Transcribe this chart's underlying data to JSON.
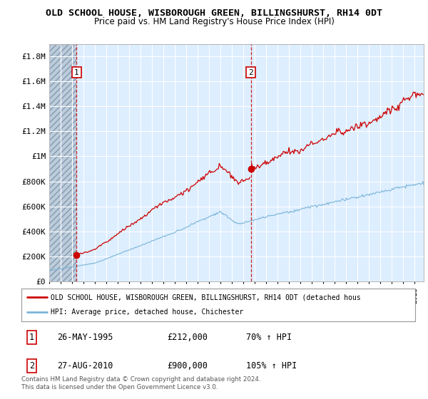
{
  "title": "OLD SCHOOL HOUSE, WISBOROUGH GREEN, BILLINGSHURST, RH14 0DT",
  "subtitle": "Price paid vs. HM Land Registry's House Price Index (HPI)",
  "ylim": [
    0,
    1900000
  ],
  "yticks": [
    0,
    200000,
    400000,
    600000,
    800000,
    1000000,
    1200000,
    1400000,
    1600000,
    1800000
  ],
  "ytick_labels": [
    "£0",
    "£200K",
    "£400K",
    "£600K",
    "£800K",
    "£1M",
    "£1.2M",
    "£1.4M",
    "£1.6M",
    "£1.8M"
  ],
  "xlim_start": 1993.0,
  "xlim_end": 2025.8,
  "sale1_year": 1995.4,
  "sale1_price": 212000,
  "sale1_label": "1",
  "sale2_year": 2010.65,
  "sale2_price": 900000,
  "sale2_label": "2",
  "hpi_color": "#7ab4d8",
  "sale_color": "#cc0000",
  "dashed_color": "#cc0000",
  "plot_bg_color": "#ddeeff",
  "hatch_color": "#bbccdd",
  "grid_color": "#aabbcc",
  "legend_label_red": "OLD SCHOOL HOUSE, WISBOROUGH GREEN, BILLINGSHURST, RH14 0DT (detached hous",
  "legend_label_blue": "HPI: Average price, detached house, Chichester",
  "table_row1": [
    "1",
    "26-MAY-1995",
    "£212,000",
    "70% ↑ HPI"
  ],
  "table_row2": [
    "2",
    "27-AUG-2010",
    "£900,000",
    "105% ↑ HPI"
  ],
  "footer": "Contains HM Land Registry data © Crown copyright and database right 2024.\nThis data is licensed under the Open Government Licence v3.0.",
  "title_fontsize": 9.5,
  "subtitle_fontsize": 8.5
}
